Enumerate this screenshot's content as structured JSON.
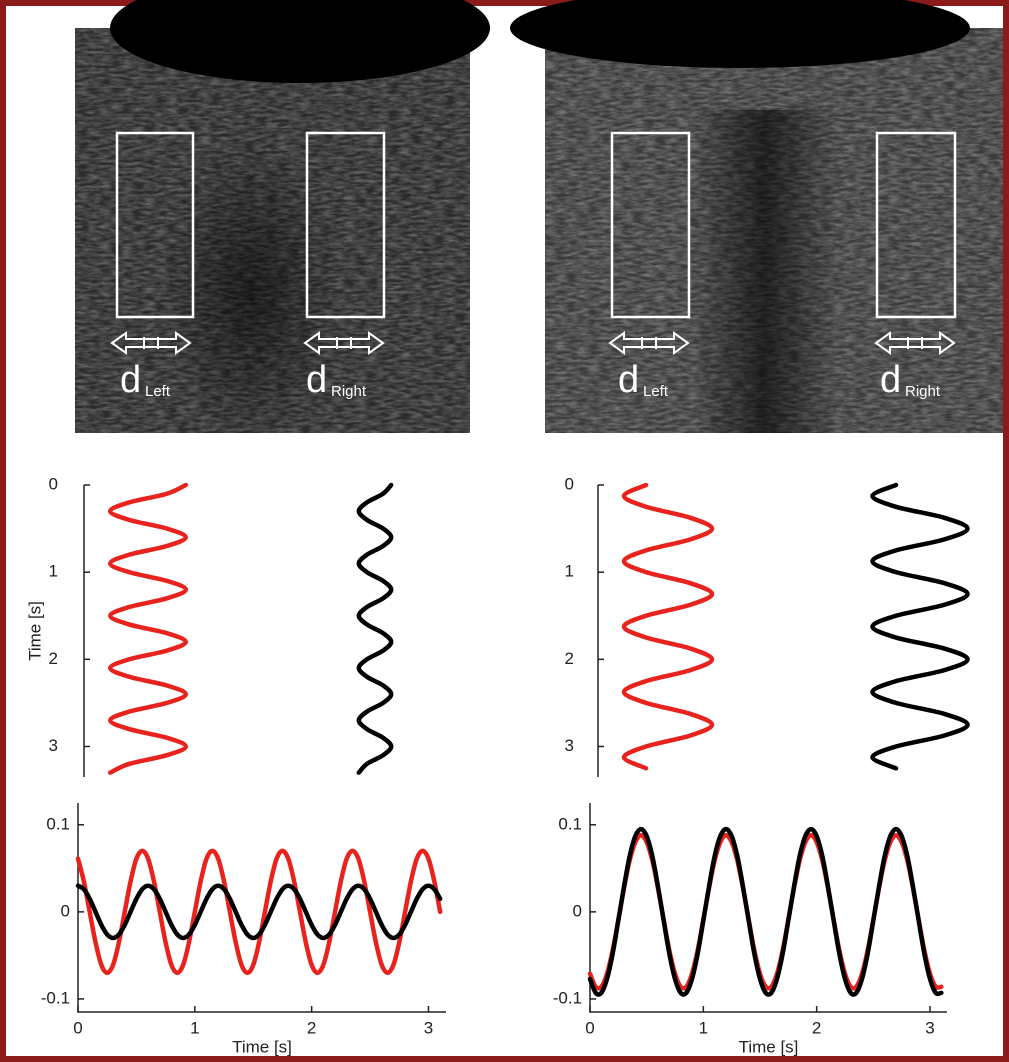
{
  "images": [
    {
      "labels": [
        {
          "main": "d",
          "sub": "Left"
        },
        {
          "main": "d",
          "sub": "Right"
        }
      ]
    },
    {
      "labels": [
        {
          "main": "d",
          "sub": "Left"
        },
        {
          "main": "d",
          "sub": "Right"
        }
      ]
    }
  ],
  "chart_data": [
    {
      "type": "line",
      "orientation": "vertical",
      "xlabel": "Time [s]",
      "xlim": [
        0,
        3.35
      ],
      "xticks": [
        0,
        1,
        2,
        3
      ],
      "x": [
        0,
        0.1,
        0.2,
        0.3,
        0.4,
        0.5,
        0.6,
        0.7,
        0.8,
        0.9,
        1,
        1.1,
        1.2,
        1.3,
        1.4,
        1.5,
        1.6,
        1.7,
        1.8,
        1.9,
        2,
        2.1,
        2.2,
        2.3,
        2.4,
        2.5,
        2.6,
        2.7,
        2.8,
        2.9,
        3,
        3.1,
        3.2,
        3.3
      ],
      "series": [
        {
          "color": "#e8231e",
          "values": [
            0.07,
            0.035,
            -0.035,
            -0.07,
            -0.035,
            0.035,
            0.07,
            0.035,
            -0.035,
            -0.07,
            -0.035,
            0.035,
            0.07,
            0.035,
            -0.035,
            -0.07,
            -0.035,
            0.035,
            0.07,
            0.035,
            -0.035,
            -0.07,
            -0.035,
            0.035,
            0.07,
            0.035,
            -0.035,
            -0.07,
            -0.035,
            0.035,
            0.07,
            0.035,
            -0.035,
            -0.07
          ]
        },
        {
          "color": "#000000",
          "values": [
            0.03,
            0.015,
            -0.015,
            -0.03,
            -0.015,
            0.015,
            0.03,
            0.015,
            -0.015,
            -0.03,
            -0.015,
            0.015,
            0.03,
            0.015,
            -0.015,
            -0.03,
            -0.015,
            0.015,
            0.03,
            0.015,
            -0.015,
            -0.03,
            -0.015,
            0.015,
            0.03,
            0.015,
            -0.015,
            -0.03,
            -0.015,
            0.015,
            0.03,
            0.015,
            -0.015,
            -0.03
          ]
        }
      ]
    },
    {
      "type": "line",
      "orientation": "vertical",
      "xlim": [
        0,
        3.35
      ],
      "xticks": [
        0,
        1,
        2,
        3
      ],
      "x": [
        0,
        0.125,
        0.25,
        0.375,
        0.5,
        0.625,
        0.75,
        0.875,
        1,
        1.125,
        1.25,
        1.375,
        1.5,
        1.625,
        1.75,
        1.875,
        2,
        2.125,
        2.25,
        2.375,
        2.5,
        2.625,
        2.75,
        2.875,
        3,
        3.125,
        3.25
      ],
      "series": [
        {
          "color": "#e8231e",
          "values": [
            -0.044,
            -0.088,
            -0.044,
            0.044,
            0.088,
            0.044,
            -0.044,
            -0.088,
            -0.044,
            0.044,
            0.088,
            0.044,
            -0.044,
            -0.088,
            -0.044,
            0.044,
            0.088,
            0.044,
            -0.044,
            -0.088,
            -0.044,
            0.044,
            0.088,
            0.044,
            -0.044,
            -0.088,
            -0.044
          ]
        },
        {
          "color": "#000000",
          "values": [
            -0.048,
            -0.095,
            -0.048,
            0.048,
            0.095,
            0.048,
            -0.048,
            -0.095,
            -0.048,
            0.048,
            0.095,
            0.048,
            -0.048,
            -0.095,
            -0.048,
            0.048,
            0.095,
            0.048,
            -0.048,
            -0.095,
            -0.048,
            0.048,
            0.095,
            0.048,
            -0.048,
            -0.095,
            -0.048
          ]
        }
      ]
    },
    {
      "type": "line",
      "xlabel": "Time [s]",
      "xlim": [
        0,
        3.15
      ],
      "xticks": [
        0,
        1,
        2,
        3
      ],
      "ylim": [
        -0.115,
        0.125
      ],
      "yticks": [
        -0.1,
        0,
        0.1
      ],
      "x": [
        0,
        0.05,
        0.1,
        0.15,
        0.2,
        0.25,
        0.3,
        0.35,
        0.4,
        0.45,
        0.5,
        0.55,
        0.6,
        0.65,
        0.7,
        0.75,
        0.8,
        0.85,
        0.9,
        0.95,
        1,
        1.05,
        1.1,
        1.15,
        1.2,
        1.25,
        1.3,
        1.35,
        1.4,
        1.45,
        1.5,
        1.55,
        1.6,
        1.65,
        1.7,
        1.75,
        1.8,
        1.85,
        1.9,
        1.95,
        2,
        2.05,
        2.1,
        2.15,
        2.2,
        2.25,
        2.3,
        2.35,
        2.4,
        2.45,
        2.5,
        2.55,
        2.6,
        2.65,
        2.7,
        2.75,
        2.8,
        2.85,
        2.9,
        2.95,
        3,
        3.05,
        3.1
      ],
      "series": [
        {
          "color": "#e8231e",
          "values": [
            0.061,
            0.035,
            0,
            -0.035,
            -0.061,
            -0.07,
            -0.061,
            -0.035,
            0,
            0.035,
            0.061,
            0.07,
            0.061,
            0.035,
            0,
            -0.035,
            -0.061,
            -0.07,
            -0.061,
            -0.035,
            0,
            0.035,
            0.061,
            0.07,
            0.061,
            0.035,
            0,
            -0.035,
            -0.061,
            -0.07,
            -0.061,
            -0.035,
            0,
            0.035,
            0.061,
            0.07,
            0.061,
            0.035,
            0,
            -0.035,
            -0.061,
            -0.07,
            -0.061,
            -0.035,
            0,
            0.035,
            0.061,
            0.07,
            0.061,
            0.035,
            0,
            -0.035,
            -0.061,
            -0.07,
            -0.061,
            -0.035,
            0,
            0.035,
            0.061,
            0.07,
            0.061,
            0.035,
            0
          ]
        },
        {
          "color": "#000000",
          "values": [
            0.03,
            0.026,
            0.015,
            0,
            -0.015,
            -0.026,
            -0.03,
            -0.026,
            -0.015,
            0,
            0.015,
            0.026,
            0.03,
            0.026,
            0.015,
            0,
            -0.015,
            -0.026,
            -0.03,
            -0.026,
            -0.015,
            0,
            0.015,
            0.026,
            0.03,
            0.026,
            0.015,
            0,
            -0.015,
            -0.026,
            -0.03,
            -0.026,
            -0.015,
            0,
            0.015,
            0.026,
            0.03,
            0.026,
            0.015,
            0,
            -0.015,
            -0.026,
            -0.03,
            -0.026,
            -0.015,
            0,
            0.015,
            0.026,
            0.03,
            0.026,
            0.015,
            0,
            -0.015,
            -0.026,
            -0.03,
            -0.026,
            -0.015,
            0,
            0.015,
            0.026,
            0.03,
            0.026,
            0.015
          ]
        }
      ]
    },
    {
      "type": "line",
      "xlabel": "Time [s]",
      "xlim": [
        0,
        3.15
      ],
      "xticks": [
        0,
        1,
        2,
        3
      ],
      "ylim": [
        -0.115,
        0.125
      ],
      "yticks": [
        -0.1,
        0,
        0.1
      ],
      "x": [
        0,
        0.05,
        0.1,
        0.15,
        0.2,
        0.25,
        0.3,
        0.35,
        0.4,
        0.45,
        0.5,
        0.55,
        0.6,
        0.65,
        0.7,
        0.75,
        0.8,
        0.85,
        0.9,
        0.95,
        1,
        1.05,
        1.1,
        1.15,
        1.2,
        1.25,
        1.3,
        1.35,
        1.4,
        1.45,
        1.5,
        1.55,
        1.6,
        1.65,
        1.7,
        1.75,
        1.8,
        1.85,
        1.9,
        1.95,
        2,
        2.05,
        2.1,
        2.15,
        2.2,
        2.25,
        2.3,
        2.35,
        2.4,
        2.45,
        2.5,
        2.55,
        2.6,
        2.65,
        2.7,
        2.75,
        2.8,
        2.85,
        2.9,
        2.95,
        3,
        3.05,
        3.1
      ],
      "series": [
        {
          "color": "#e8231e",
          "values": [
            -0.071,
            -0.086,
            -0.086,
            -0.071,
            -0.044,
            -0.009,
            0.027,
            0.059,
            0.08,
            0.088,
            0.08,
            0.059,
            0.027,
            -0.009,
            -0.044,
            -0.071,
            -0.086,
            -0.086,
            -0.071,
            -0.044,
            -0.009,
            0.027,
            0.059,
            0.08,
            0.088,
            0.08,
            0.059,
            0.027,
            -0.009,
            -0.044,
            -0.071,
            -0.086,
            -0.086,
            -0.071,
            -0.044,
            -0.009,
            0.027,
            0.059,
            0.08,
            0.088,
            0.08,
            0.059,
            0.027,
            -0.009,
            -0.044,
            -0.071,
            -0.086,
            -0.086,
            -0.071,
            -0.044,
            -0.009,
            0.027,
            0.059,
            0.08,
            0.088,
            0.08,
            0.059,
            0.027,
            -0.009,
            -0.044,
            -0.071,
            -0.086,
            -0.086
          ]
        },
        {
          "color": "#000000",
          "values": [
            -0.077,
            -0.093,
            -0.093,
            -0.077,
            -0.048,
            -0.01,
            0.029,
            0.064,
            0.087,
            0.095,
            0.087,
            0.064,
            0.029,
            -0.01,
            -0.048,
            -0.077,
            -0.093,
            -0.093,
            -0.077,
            -0.048,
            -0.01,
            0.029,
            0.064,
            0.087,
            0.095,
            0.087,
            0.064,
            0.029,
            -0.01,
            -0.048,
            -0.077,
            -0.093,
            -0.093,
            -0.077,
            -0.048,
            -0.01,
            0.029,
            0.064,
            0.087,
            0.095,
            0.087,
            0.064,
            0.029,
            -0.01,
            -0.048,
            -0.077,
            -0.093,
            -0.093,
            -0.077,
            -0.048,
            -0.01,
            0.029,
            0.064,
            0.087,
            0.095,
            0.087,
            0.064,
            0.029,
            -0.01,
            -0.048,
            -0.077,
            -0.093,
            -0.093
          ]
        }
      ]
    }
  ]
}
